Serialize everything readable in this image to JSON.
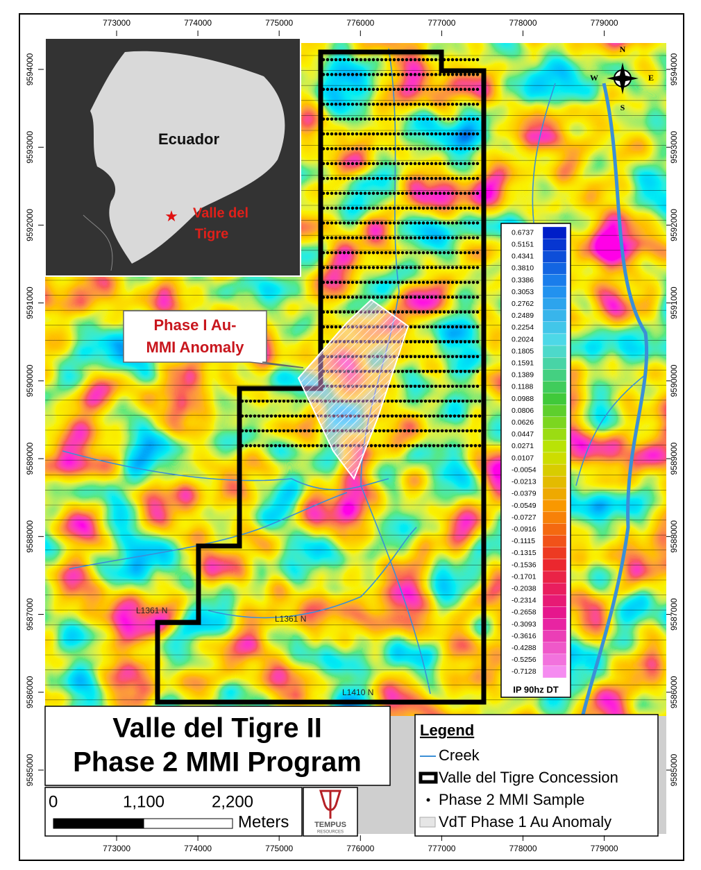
{
  "map": {
    "eastings": [
      773000,
      774000,
      775000,
      776000,
      777000,
      778000,
      779000
    ],
    "northings": [
      9585000,
      9586000,
      9587000,
      9588000,
      9589000,
      9590000,
      9591000,
      9592000,
      9593000,
      9594000
    ]
  },
  "inset": {
    "country": "Ecuador",
    "site": [
      "Valle del",
      "Tigre"
    ]
  },
  "compass": {
    "n": "N",
    "s": "S",
    "e": "E",
    "w": "W"
  },
  "callout": [
    "Phase I Au-",
    "MMI Anomaly"
  ],
  "line_labels": [
    "L1361 N",
    "L1361 N",
    "L1410 N"
  ],
  "colorbar": {
    "title": "IP 90hz DT",
    "labels": [
      "0.6737",
      "0.5151",
      "0.4341",
      "0.3810",
      "0.3386",
      "0.3053",
      "0.2762",
      "0.2489",
      "0.2254",
      "0.2024",
      "0.1805",
      "0.1591",
      "0.1389",
      "0.1188",
      "0.0988",
      "0.0806",
      "0.0626",
      "0.0447",
      "0.0271",
      "0.0107",
      "-0.0054",
      "-0.0213",
      "-0.0379",
      "-0.0549",
      "-0.0727",
      "-0.0916",
      "-0.1115",
      "-0.1315",
      "-0.1536",
      "-0.1701",
      "-0.2038",
      "-0.2314",
      "-0.2658",
      "-0.3093",
      "-0.3616",
      "-0.4288",
      "-0.5256",
      "-0.7128"
    ]
  },
  "title": [
    "Valle del Tigre II",
    "Phase 2 MMI Program"
  ],
  "scale": {
    "ticks": [
      "0",
      "1,100",
      "2,200"
    ],
    "unit": "Meters"
  },
  "logo": {
    "name": "TEMPUS",
    "sub": "RESOURCES"
  },
  "legend": {
    "title": "Legend",
    "items": [
      "Creek",
      "Valle del Tigre Concession",
      "Phase 2 MMI Sample",
      "VdT Phase 1 Au Anomaly"
    ]
  }
}
